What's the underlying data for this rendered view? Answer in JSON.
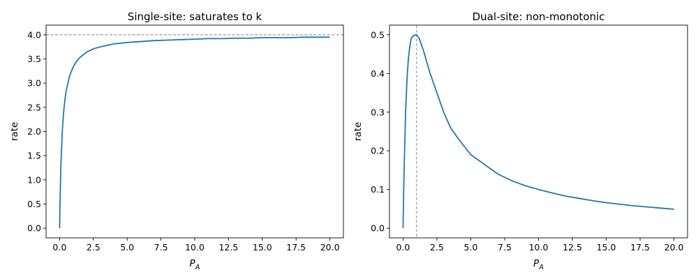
{
  "chart_data": [
    {
      "type": "line",
      "title": "Single-site: saturates to k",
      "xlabel": "P",
      "xlabel_sub": "A",
      "ylabel": "rate",
      "xlim": [
        -1.0,
        21.0
      ],
      "ylim": [
        -0.2,
        4.2
      ],
      "xticks": [
        0,
        2.5,
        5,
        7.5,
        10,
        12.5,
        15,
        17.5,
        20
      ],
      "xtick_labels": [
        "0.0",
        "2.5",
        "5.0",
        "7.5",
        "10.0",
        "12.5",
        "15.0",
        "17.5",
        "20.0"
      ],
      "yticks": [
        0,
        0.5,
        1,
        1.5,
        2,
        2.5,
        3,
        3.5,
        4
      ],
      "ytick_labels": [
        "0.0",
        "0.5",
        "1.0",
        "1.5",
        "2.0",
        "2.5",
        "3.0",
        "3.5",
        "4.0"
      ],
      "series": [
        {
          "color": "#1f77b4",
          "x": [
            0,
            0.05,
            0.1,
            0.2,
            0.3,
            0.4,
            0.5,
            0.75,
            1,
            1.25,
            1.5,
            2,
            2.5,
            3,
            3.5,
            4,
            5,
            6,
            7,
            8,
            9,
            10,
            11,
            12,
            13,
            14,
            15,
            16,
            17,
            18,
            19,
            20
          ],
          "y": [
            0,
            0.76,
            1.33,
            2.0,
            2.4,
            2.67,
            2.86,
            3.16,
            3.33,
            3.45,
            3.53,
            3.64,
            3.71,
            3.75,
            3.78,
            3.81,
            3.84,
            3.86,
            3.88,
            3.89,
            3.9,
            3.91,
            3.92,
            3.92,
            3.93,
            3.93,
            3.94,
            3.94,
            3.94,
            3.95,
            3.95,
            3.95
          ]
        }
      ],
      "hline": 4.0,
      "hline_color": "#808080"
    },
    {
      "type": "line",
      "title": "Dual-site: non-monotonic",
      "xlabel": "P",
      "xlabel_sub": "A",
      "ylabel": "rate",
      "xlim": [
        -1.0,
        21.0
      ],
      "ylim": [
        -0.025,
        0.525
      ],
      "xticks": [
        0,
        2.5,
        5,
        7.5,
        10,
        12.5,
        15,
        17.5,
        20
      ],
      "xtick_labels": [
        "0.0",
        "2.5",
        "5.0",
        "7.5",
        "10.0",
        "12.5",
        "15.0",
        "17.5",
        "20.0"
      ],
      "yticks": [
        0,
        0.1,
        0.2,
        0.3,
        0.4,
        0.5
      ],
      "ytick_labels": [
        "0.0",
        "0.1",
        "0.2",
        "0.3",
        "0.4",
        "0.5"
      ],
      "series": [
        {
          "color": "#1f77b4",
          "x": [
            0,
            0.05,
            0.1,
            0.2,
            0.3,
            0.4,
            0.5,
            0.6,
            0.7,
            0.8,
            0.9,
            1,
            1.2,
            1.5,
            2,
            2.5,
            3,
            3.5,
            4,
            5,
            6,
            7,
            8,
            9,
            10,
            11,
            12,
            13,
            14,
            15,
            16,
            17,
            18,
            19,
            20
          ],
          "y": [
            0,
            0.1,
            0.18,
            0.31,
            0.39,
            0.44,
            0.47,
            0.49,
            0.495,
            0.498,
            0.499,
            0.5,
            0.49,
            0.46,
            0.4,
            0.35,
            0.3,
            0.26,
            0.235,
            0.19,
            0.165,
            0.14,
            0.123,
            0.11,
            0.1,
            0.091,
            0.083,
            0.077,
            0.071,
            0.066,
            0.062,
            0.058,
            0.055,
            0.052,
            0.049
          ]
        }
      ],
      "vline": 1.0,
      "vline_color": "#808080"
    }
  ]
}
